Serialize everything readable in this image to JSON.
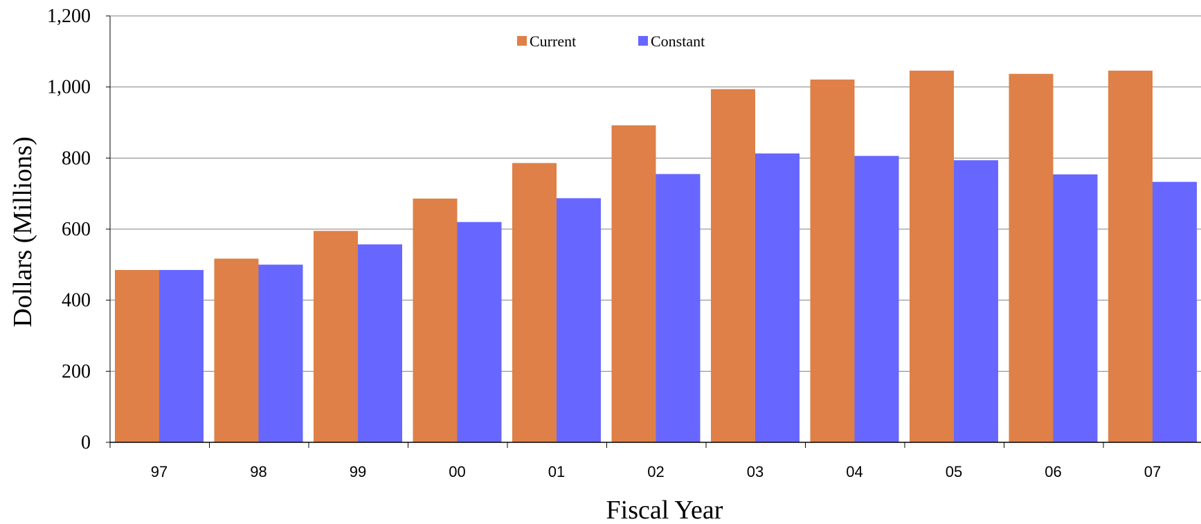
{
  "chart_data": {
    "type": "bar",
    "xlabel": "Fiscal Year",
    "ylabel": "Dollars (Millions)",
    "ylim": [
      0,
      1200
    ],
    "yticks": [
      0,
      200,
      400,
      600,
      800,
      1000,
      1200
    ],
    "ytick_labels": [
      "0",
      "200",
      "400",
      "600",
      "800",
      "1,000",
      "1,200"
    ],
    "categories": [
      "97",
      "98",
      "99",
      "00",
      "01",
      "02",
      "03",
      "04",
      "05",
      "06",
      "07"
    ],
    "grid": true,
    "legend_position": "top-center",
    "series": [
      {
        "name": "Current",
        "color": "#DE8047",
        "values": [
          485,
          517,
          595,
          686,
          786,
          892,
          994,
          1021,
          1046,
          1037,
          1046
        ]
      },
      {
        "name": "Constant",
        "color": "#6767FF",
        "values": [
          485,
          500,
          557,
          620,
          687,
          755,
          813,
          806,
          794,
          754,
          733
        ]
      }
    ]
  }
}
